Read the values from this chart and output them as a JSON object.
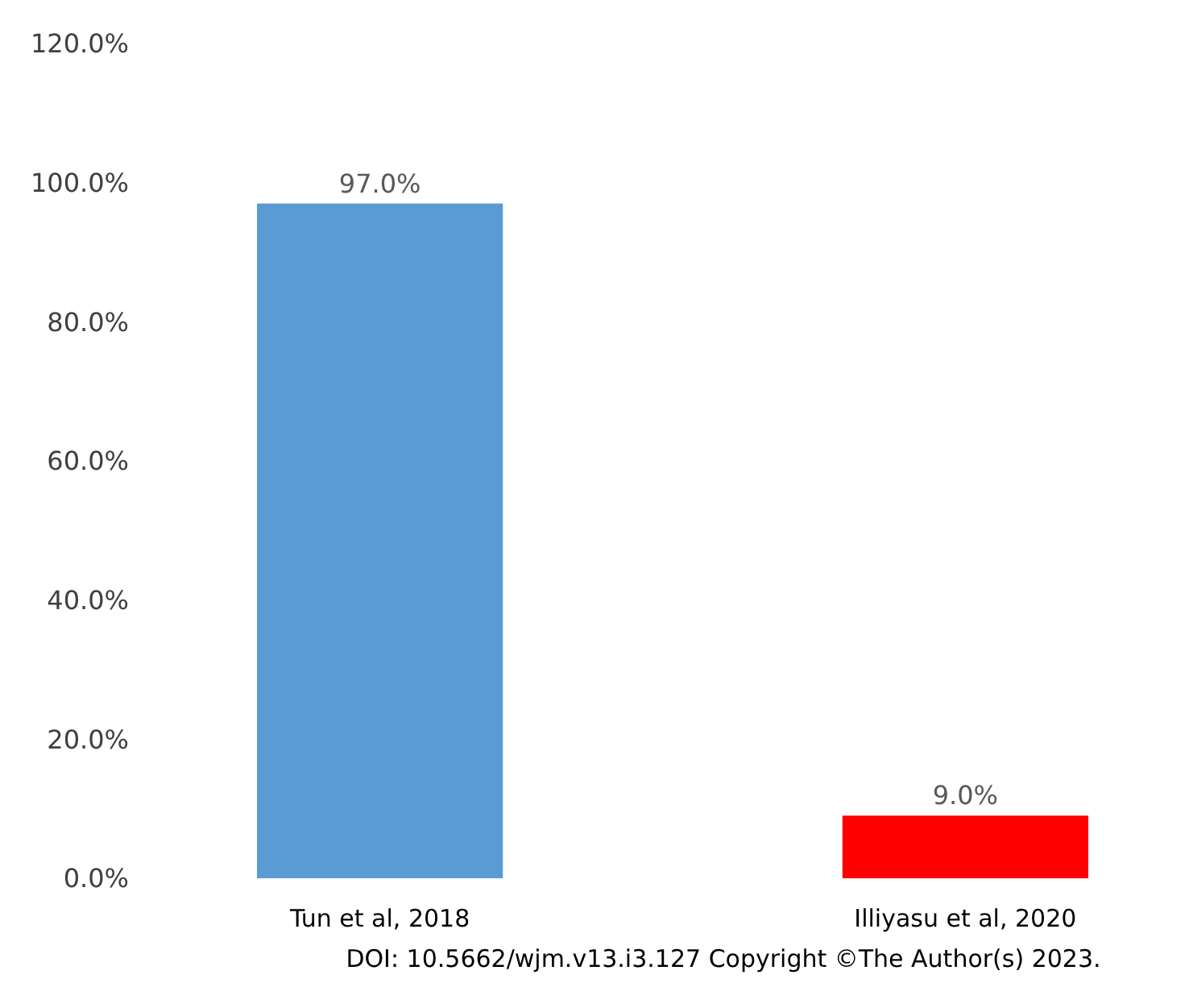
{
  "chart_data": {
    "type": "bar",
    "categories": [
      "Tun et al, 2018",
      "Illiyasu et al, 2020"
    ],
    "values": [
      97,
      9
    ],
    "colors": [
      "#5b9bd5",
      "#ff0000"
    ],
    "value_labels": [
      "97.0%",
      "9.0%"
    ],
    "ylim": [
      0,
      120
    ],
    "yticks": [
      {
        "value": 0,
        "label": "0.0%"
      },
      {
        "value": 20,
        "label": "20.0%"
      },
      {
        "value": 40,
        "label": "40.0%"
      },
      {
        "value": 60,
        "label": "60.0%"
      },
      {
        "value": 80,
        "label": "80.0%"
      },
      {
        "value": 100,
        "label": "100.0%"
      },
      {
        "value": 120,
        "label": "120.0%"
      }
    ],
    "grid": false,
    "annotations": [
      "DOI: 10.5662/wjm.v13.i3.127 Copyright ©The Author(s) 2023."
    ]
  }
}
